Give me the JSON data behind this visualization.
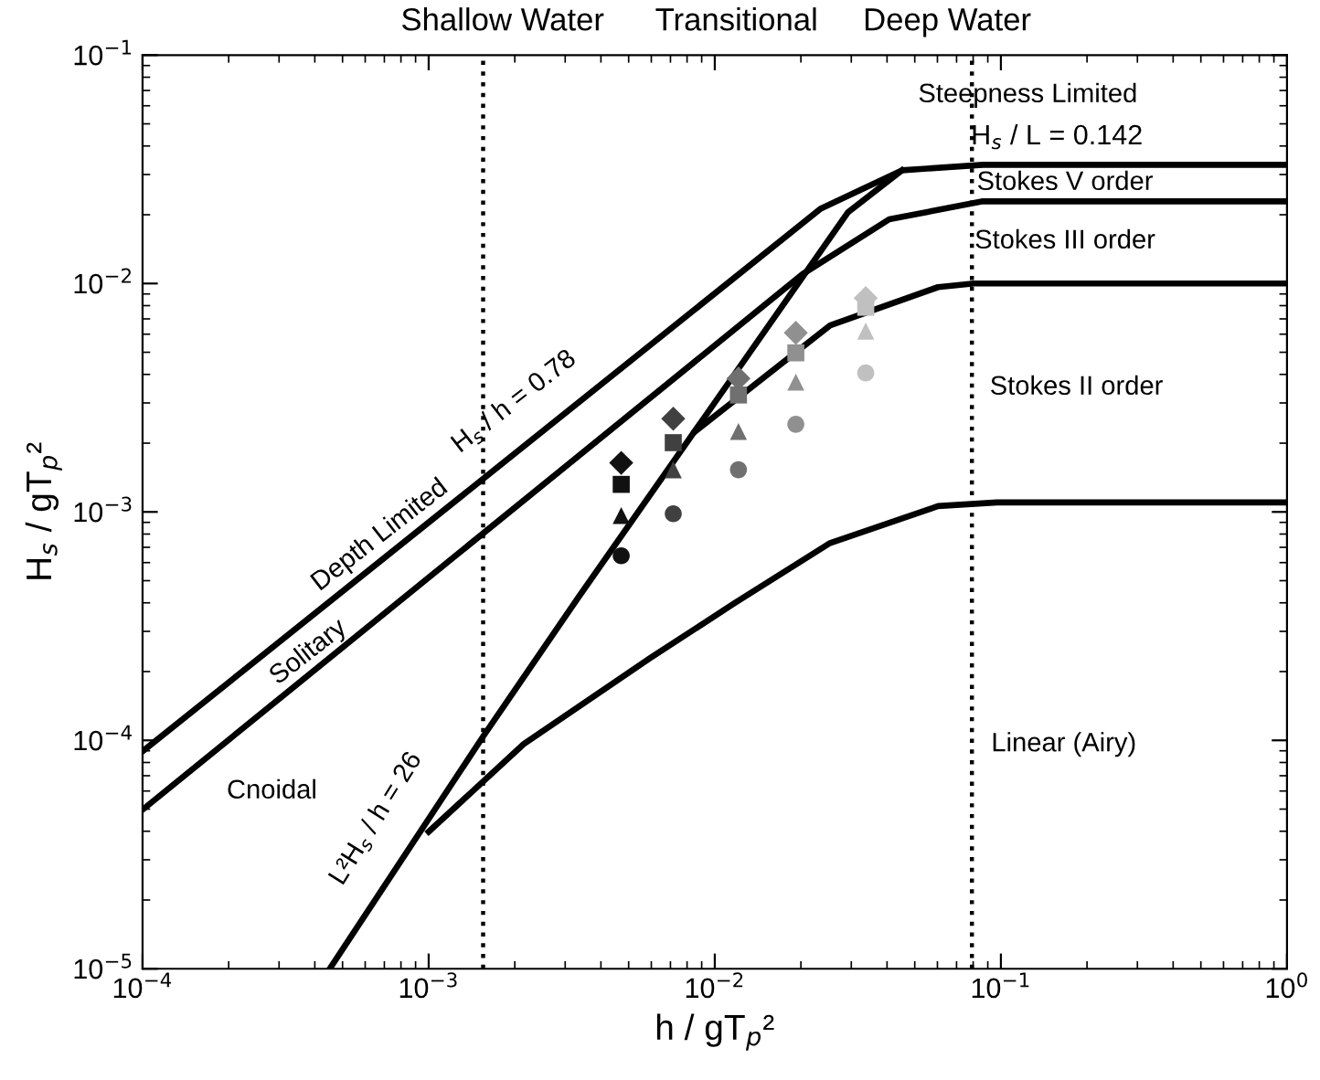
{
  "chart_data": {
    "type": "line",
    "xlabel": "h / gT$_{p}$²",
    "ylabel": "H$_{s}$ / gT$_{p}$²",
    "log": "xy",
    "xlim": [
      0.0001,
      1
    ],
    "ylim": [
      1e-05,
      0.1
    ],
    "xticks": [
      {
        "value": 0.0001,
        "label": "10$^{−4}$"
      },
      {
        "value": 0.001,
        "label": "10$^{−3}$"
      },
      {
        "value": 0.01,
        "label": "10$^{−2}$"
      },
      {
        "value": 0.1,
        "label": "10$^{−1}$"
      },
      {
        "value": 1,
        "label": "10$^{0}$"
      }
    ],
    "yticks": [
      {
        "value": 1e-05,
        "label": "10$^{−5}$"
      },
      {
        "value": 0.0001,
        "label": "10$^{−4}$"
      },
      {
        "value": 0.001,
        "label": "10$^{−3}$"
      },
      {
        "value": 0.01,
        "label": "10$^{−2}$"
      },
      {
        "value": 0.1,
        "label": "10$^{−1}$"
      }
    ],
    "grid": false,
    "legend": false,
    "series": [
      {
        "color": "#000000",
        "marker": "none",
        "line_style": "solid",
        "x": [
          0.0001,
          0.0235,
          0.0451,
          0.0865,
          1
        ],
        "values": [
          8.95e-05,
          0.0213,
          0.0313,
          0.0331,
          0.0331
        ]
      },
      {
        "color": "#000000",
        "marker": "none",
        "line_style": "solid",
        "x": [
          0.0001,
          0.0203,
          0.0407,
          0.0865,
          1
        ],
        "values": [
          4.97e-05,
          0.011,
          0.0191,
          0.0229,
          0.0229
        ]
      },
      {
        "color": "#000000",
        "marker": "none",
        "line_style": "solid",
        "x": [
          0.000451,
          0.00155,
          0.00333,
          0.0292,
          0.0451
        ],
        "values": [
          1e-05,
          0.000104,
          0.000421,
          0.0205,
          0.0313
        ]
      },
      {
        "color": "#000000",
        "marker": "none",
        "line_style": "solid",
        "x": [
          0.00853,
          0.0253,
          0.0603,
          0.0805,
          1
        ],
        "values": [
          0.00225,
          0.00655,
          0.00964,
          0.01,
          0.01
        ]
      },
      {
        "color": "#000000",
        "marker": "none",
        "line_style": "solid",
        "x": [
          0.001,
          0.00215,
          0.00594,
          0.0117,
          0.0253,
          0.0603,
          0.097,
          1
        ],
        "values": [
          3.98e-05,
          9.64e-05,
          0.000229,
          0.000398,
          0.000731,
          0.00106,
          0.0011,
          0.0011
        ]
      },
      {
        "type": "scatter",
        "marker": "diamond",
        "colors": [
          "#111111",
          "#404040",
          "#707070",
          "#909090",
          "#c0c0c0"
        ],
        "x": [
          0.00471,
          0.00716,
          0.0121,
          0.0192,
          0.0337
        ],
        "values": [
          0.00164,
          0.00256,
          0.00384,
          0.00608,
          0.00863
        ]
      },
      {
        "type": "scatter",
        "marker": "square",
        "colors": [
          "#111111",
          "#404040",
          "#707070",
          "#909090",
          "#c0c0c0"
        ],
        "x": [
          0.00471,
          0.00716,
          0.0121,
          0.0192,
          0.0337
        ],
        "values": [
          0.00132,
          0.00201,
          0.00325,
          0.00497,
          0.00787
        ]
      },
      {
        "type": "scatter",
        "marker": "triangle",
        "colors": [
          "#111111",
          "#404040",
          "#707070",
          "#909090",
          "#c0c0c0"
        ],
        "x": [
          0.00471,
          0.00716,
          0.0121,
          0.0192,
          0.0337
        ],
        "values": [
          0.000964,
          0.00153,
          0.00225,
          0.0037,
          0.00619
        ]
      },
      {
        "type": "scatter",
        "marker": "circle",
        "colors": [
          "#111111",
          "#404040",
          "#707070",
          "#909090",
          "#c0c0c0"
        ],
        "x": [
          0.00471,
          0.00716,
          0.0121,
          0.0192,
          0.0337
        ],
        "values": [
          0.000643,
          0.000982,
          0.00153,
          0.00242,
          0.00406
        ]
      }
    ],
    "ref_lines": [
      {
        "axis": "x",
        "value": 0.00155,
        "color": "#000000",
        "line_style": "dotted"
      },
      {
        "axis": "x",
        "value": 0.0792,
        "color": "#000000",
        "line_style": "dotted"
      }
    ],
    "annotations": [
      "Shallow Water",
      "Transitional",
      "Deep Water",
      "Depth Limited",
      "H$_{s}$ / h = 0.78",
      "Solitary",
      "Cnoidal",
      "L²H$_{s}$ / h = 26",
      "Steepness Limited",
      "H$_{s}$ / L = 0.142",
      "Stokes V order",
      "Stokes III order",
      "Stokes II order",
      "Linear (Airy)"
    ]
  }
}
